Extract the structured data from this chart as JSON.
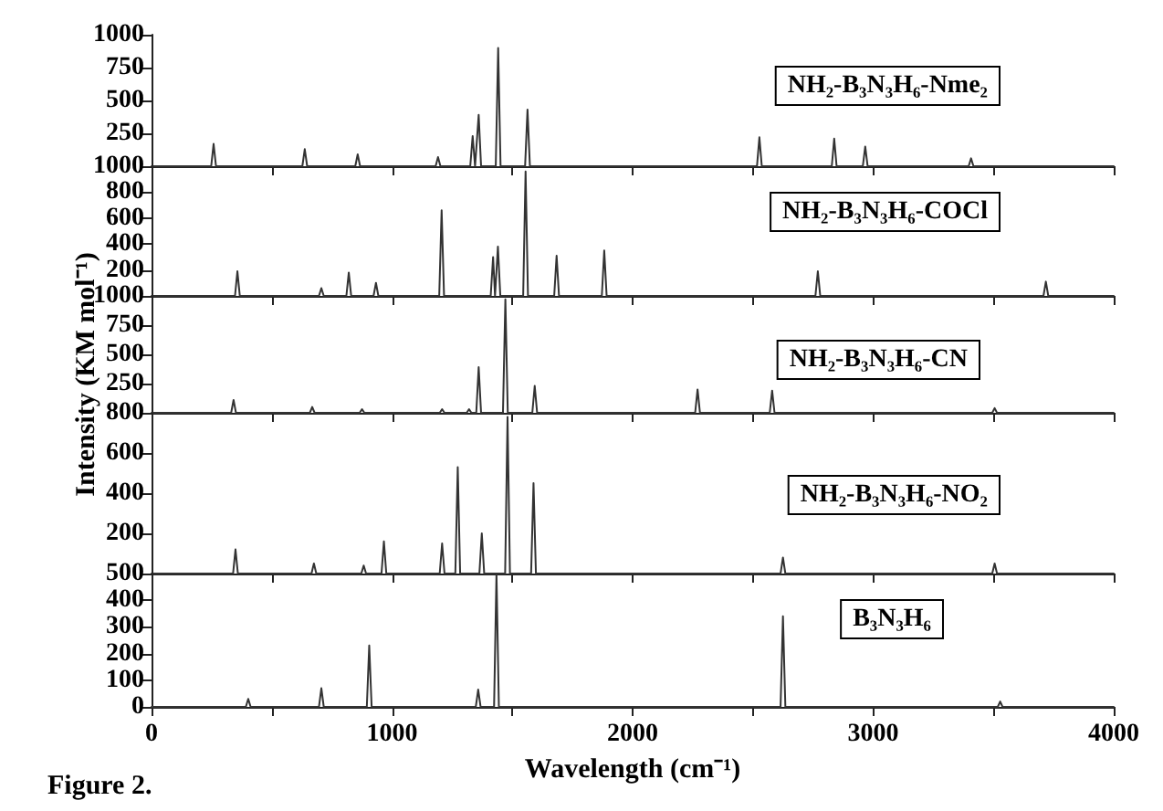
{
  "chart_data": [
    {
      "type": "line",
      "annotations": [
        "NH₂-B₃N₃H₆-Nme₂"
      ],
      "color": "#333333",
      "tick_labels": "y",
      "xlim": [
        0,
        4000
      ],
      "xticks": [
        0,
        {
          "value": 500,
          "label": null
        },
        1000,
        {
          "value": 1500,
          "label": null
        },
        2000,
        {
          "value": 2500,
          "label": null
        },
        3000,
        {
          "value": 3500,
          "label": null
        },
        4000
      ],
      "ylim": [
        0,
        1000
      ],
      "yticks": [
        250,
        500,
        750,
        1000
      ],
      "x": [
        0,
        248,
        258,
        268,
        627,
        637,
        647,
        847,
        857,
        867,
        1181,
        1191,
        1201,
        1325,
        1335,
        1345,
        1350,
        1360,
        1370,
        1431,
        1441,
        1451,
        1553,
        1563,
        1573,
        2517,
        2527,
        2537,
        2828,
        2838,
        2848,
        2957,
        2967,
        2977,
        3397,
        3407,
        3417,
        4000
      ],
      "values": [
        0,
        0,
        170,
        0,
        0,
        130,
        0,
        0,
        90,
        0,
        0,
        70,
        0,
        0,
        230,
        0,
        0,
        390,
        0,
        0,
        900,
        0,
        0,
        430,
        0,
        0,
        220,
        0,
        0,
        210,
        0,
        0,
        150,
        0,
        0,
        60,
        0,
        0
      ]
    },
    {
      "type": "line",
      "annotations": [
        "NH₂-B₃N₃H₆-COCl"
      ],
      "color": "#333333",
      "tick_labels": "y",
      "xlim": [
        0,
        4000
      ],
      "xticks": [
        0,
        {
          "value": 500,
          "label": null
        },
        1000,
        {
          "value": 1500,
          "label": null
        },
        2000,
        {
          "value": 2500,
          "label": null
        },
        3000,
        {
          "value": 3500,
          "label": null
        },
        4000
      ],
      "ylim": [
        0,
        1000
      ],
      "yticks": [
        200,
        400,
        600,
        800,
        1000
      ],
      "x": [
        0,
        347,
        357,
        367,
        696,
        706,
        716,
        810,
        820,
        830,
        923,
        933,
        943,
        1196,
        1206,
        1216,
        1410,
        1420,
        1428,
        1432,
        1440,
        1450,
        1545,
        1555,
        1565,
        1674,
        1684,
        1694,
        1872,
        1882,
        1892,
        2760,
        2770,
        2780,
        3708,
        3718,
        3728,
        4000
      ],
      "values": [
        0,
        0,
        190,
        0,
        0,
        60,
        0,
        0,
        180,
        0,
        0,
        100,
        0,
        0,
        660,
        0,
        0,
        300,
        0,
        0,
        380,
        0,
        0,
        960,
        0,
        0,
        310,
        0,
        0,
        350,
        0,
        0,
        190,
        0,
        0,
        110,
        0,
        0
      ]
    },
    {
      "type": "line",
      "annotations": [
        "NH₂-B₃N₃H₆-CN"
      ],
      "ylabel": "Intensity (KM mol⁻¹)",
      "color": "#333333",
      "tick_labels": "y",
      "xlim": [
        0,
        4000
      ],
      "xticks": [
        0,
        {
          "value": 500,
          "label": null
        },
        1000,
        {
          "value": 1500,
          "label": null
        },
        2000,
        {
          "value": 2500,
          "label": null
        },
        3000,
        {
          "value": 3500,
          "label": null
        },
        4000
      ],
      "ylim": [
        0,
        1000
      ],
      "yticks": [
        250,
        500,
        750,
        1000
      ],
      "x": [
        0,
        331,
        341,
        351,
        658,
        668,
        678,
        865,
        875,
        885,
        1198,
        1208,
        1218,
        1310,
        1320,
        1330,
        1350,
        1360,
        1370,
        1461,
        1471,
        1481,
        1583,
        1593,
        1603,
        2260,
        2270,
        2280,
        2570,
        2580,
        2590,
        3495,
        3505,
        3515,
        4000
      ],
      "values": [
        0,
        0,
        110,
        0,
        0,
        50,
        0,
        0,
        30,
        0,
        0,
        30,
        0,
        0,
        30,
        0,
        0,
        390,
        0,
        0,
        970,
        0,
        0,
        230,
        0,
        0,
        200,
        0,
        0,
        190,
        0,
        0,
        40,
        0,
        0
      ]
    },
    {
      "type": "line",
      "annotations": [
        "NH₂-B₃N₃H₆-NO₂"
      ],
      "color": "#333333",
      "tick_labels": "y",
      "xlim": [
        0,
        4000
      ],
      "xticks": [
        0,
        {
          "value": 500,
          "label": null
        },
        1000,
        {
          "value": 1500,
          "label": null
        },
        2000,
        {
          "value": 2500,
          "label": null
        },
        3000,
        {
          "value": 3500,
          "label": null
        },
        4000
      ],
      "ylim": [
        0,
        800
      ],
      "yticks": [
        200,
        400,
        600,
        800
      ],
      "x": [
        0,
        339,
        349,
        359,
        665,
        675,
        685,
        872,
        882,
        892,
        956,
        966,
        976,
        1198,
        1208,
        1218,
        1263,
        1273,
        1283,
        1363,
        1373,
        1383,
        1470,
        1480,
        1490,
        1578,
        1588,
        1598,
        2615,
        2625,
        2635,
        3495,
        3505,
        3515,
        4000
      ],
      "values": [
        0,
        0,
        120,
        0,
        0,
        50,
        0,
        0,
        40,
        0,
        0,
        160,
        0,
        0,
        150,
        0,
        0,
        530,
        0,
        0,
        200,
        0,
        0,
        780,
        0,
        0,
        450,
        0,
        0,
        80,
        0,
        0,
        50,
        0,
        0
      ]
    },
    {
      "type": "line",
      "annotations": [
        "B₃N₃H₆",
        "Figure 2."
      ],
      "xlabel": "Wavelength (cm⁻¹)",
      "color": "#333333",
      "xlim": [
        0,
        4000
      ],
      "xticks": [
        0,
        {
          "value": 500,
          "label": null
        },
        1000,
        {
          "value": 1500,
          "label": null
        },
        2000,
        {
          "value": 2500,
          "label": null
        },
        3000,
        {
          "value": 3500,
          "label": null
        },
        4000
      ],
      "ylim": [
        0,
        500
      ],
      "yticks": [
        0,
        100,
        200,
        300,
        400,
        500
      ],
      "x": [
        0,
        392,
        402,
        412,
        696,
        706,
        716,
        895,
        905,
        915,
        1348,
        1358,
        1368,
        1424,
        1434,
        1444,
        2615,
        2625,
        2635,
        3518,
        3528,
        3538,
        4000
      ],
      "values": [
        0,
        0,
        30,
        0,
        0,
        70,
        0,
        0,
        230,
        0,
        0,
        65,
        0,
        0,
        500,
        0,
        0,
        340,
        0,
        0,
        20,
        0,
        0
      ]
    }
  ]
}
